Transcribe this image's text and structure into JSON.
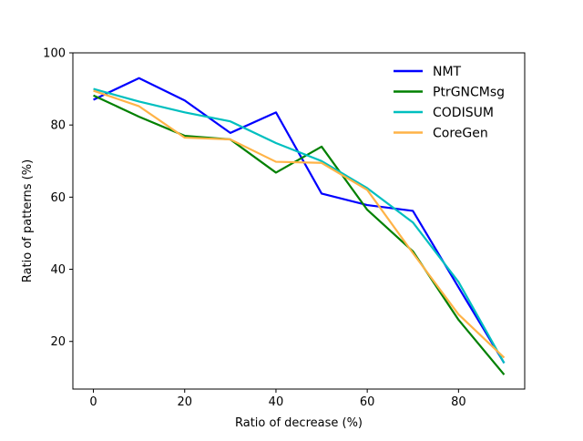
{
  "chart_data": {
    "type": "line",
    "title": "",
    "xlabel": "Ratio of decrease (%)",
    "ylabel": "Ratio of patterns (%)",
    "xlim": [
      -4.5,
      94.5
    ],
    "ylim": [
      6.8,
      100
    ],
    "x": [
      0,
      10,
      20,
      30,
      40,
      50,
      60,
      70,
      80,
      90
    ],
    "x_ticks": [
      0,
      20,
      40,
      60,
      80
    ],
    "y_ticks": [
      20,
      40,
      60,
      80,
      100
    ],
    "grid": false,
    "legend_position": "top-right",
    "series": [
      {
        "name": "NMT",
        "color": "#0000ff",
        "values": [
          87.0,
          93.0,
          86.8,
          77.8,
          83.5,
          61.0,
          57.8,
          56.2,
          35.0,
          14.0
        ]
      },
      {
        "name": "PtrGNCMsg",
        "color": "#008000",
        "values": [
          88.2,
          82.3,
          77.0,
          76.0,
          66.8,
          74.0,
          56.5,
          45.0,
          26.0,
          10.8
        ]
      },
      {
        "name": "CODISUM",
        "color": "#00bfbf",
        "values": [
          90.0,
          86.5,
          83.5,
          81.0,
          75.0,
          70.0,
          62.5,
          53.0,
          36.5,
          14.0
        ]
      },
      {
        "name": "CoreGen",
        "color": "#ffb347",
        "values": [
          89.5,
          85.2,
          76.5,
          76.0,
          69.8,
          69.5,
          62.0,
          44.5,
          27.5,
          15.5
        ]
      }
    ]
  }
}
